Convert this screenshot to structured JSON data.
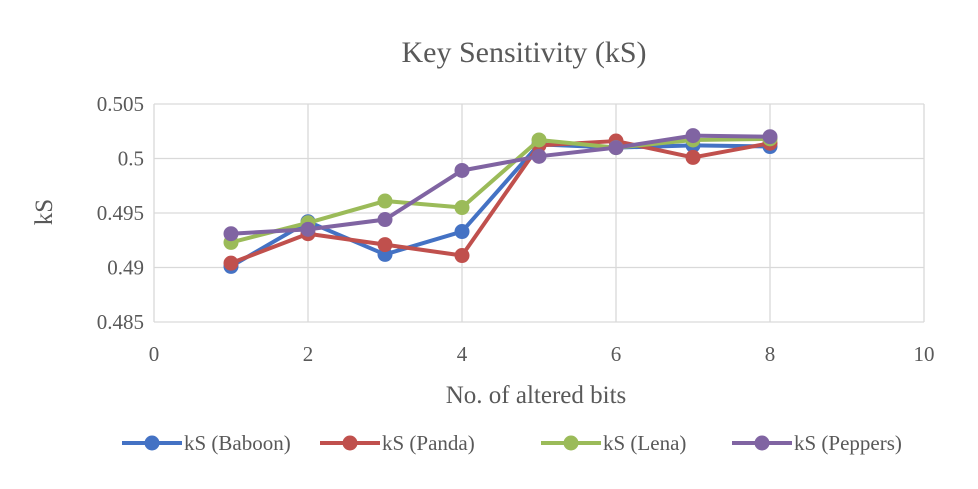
{
  "chart_data": {
    "type": "scatter",
    "title": "Key Sensitivity (kS)",
    "xlabel": "No. of altered bits",
    "ylabel": "kS",
    "xlim": [
      0,
      10
    ],
    "ylim": [
      0.485,
      0.505
    ],
    "x_ticks": [
      0,
      2,
      4,
      6,
      8,
      10
    ],
    "x_tick_labels": [
      "0",
      "2",
      "4",
      "6",
      "8",
      "10"
    ],
    "y_ticks": [
      0.485,
      0.49,
      0.495,
      0.5,
      0.505
    ],
    "y_tick_labels": [
      "0.485",
      "0.49",
      "0.495",
      "0.5",
      "0.505"
    ],
    "grid": true,
    "legend_position": "bottom",
    "x": [
      1,
      2,
      3,
      4,
      5,
      6,
      7,
      8
    ],
    "series": [
      {
        "name": "kS (Baboon)",
        "color": "#4472c4",
        "values": [
          0.4901,
          0.4942,
          0.4912,
          0.4933,
          0.5013,
          0.501,
          0.5012,
          0.5011
        ]
      },
      {
        "name": "kS (Panda)",
        "color": "#c0504d",
        "values": [
          0.4904,
          0.4931,
          0.4921,
          0.4911,
          0.5012,
          0.5016,
          0.5001,
          0.5014
        ]
      },
      {
        "name": "kS (Lena)",
        "color": "#9bbb59",
        "values": [
          0.4923,
          0.4941,
          0.4961,
          0.4955,
          0.5017,
          0.501,
          0.5017,
          0.5018
        ]
      },
      {
        "name": "kS (Peppers)",
        "color": "#8064a2",
        "values": [
          0.4931,
          0.4935,
          0.4944,
          0.4989,
          0.5002,
          0.501,
          0.5021,
          0.502
        ]
      }
    ]
  }
}
